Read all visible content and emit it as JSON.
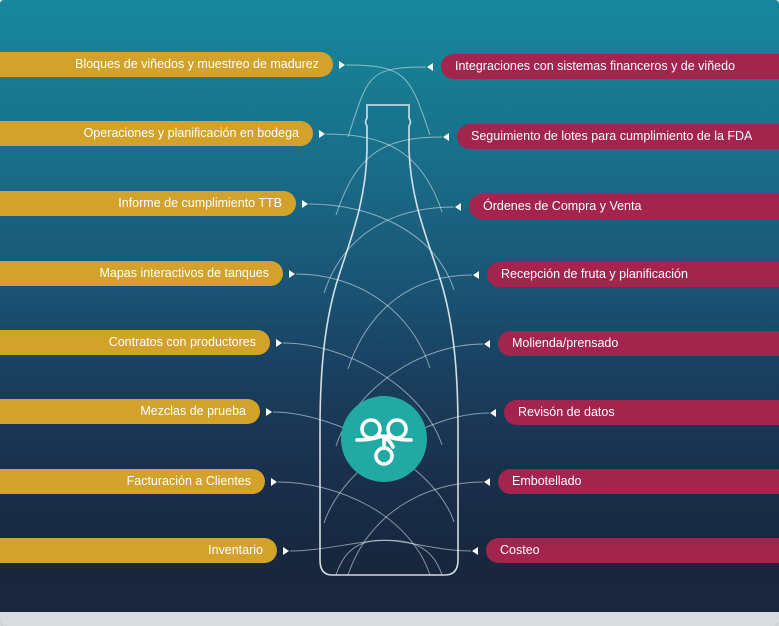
{
  "left_items": [
    {
      "label": "Bloques de viñedos y muestreo de madurez"
    },
    {
      "label": "Operaciones y planificación en bodega"
    },
    {
      "label": "Informe de cumplimiento TTB"
    },
    {
      "label": "Mapas interactivos de tanques"
    },
    {
      "label": "Contratos con productores"
    },
    {
      "label": "Mezclas de prueba"
    },
    {
      "label": "Facturación a Clientes"
    },
    {
      "label": "Inventario"
    }
  ],
  "right_items": [
    {
      "label": "Integraciones con sistemas financeros y de viñedo"
    },
    {
      "label": "Seguimiento de lotes para cumplimiento de la FDA"
    },
    {
      "label": "Órdenes de Compra y Venta"
    },
    {
      "label": "Recepción de fruta y planificación"
    },
    {
      "label": "Molienda/prensado"
    },
    {
      "label": "Revisón de datos"
    },
    {
      "label": "Embotellado"
    },
    {
      "label": "Costeo"
    }
  ],
  "colors": {
    "left_pill": "#d2a22a",
    "right_pill": "#a3254e",
    "logo_circle": "#21a9a3",
    "line": "#e8eef2"
  },
  "icons": {
    "center": "winery-logo-icon",
    "left_arrow": "triangle-right-icon",
    "right_arrow": "triangle-left-icon"
  }
}
